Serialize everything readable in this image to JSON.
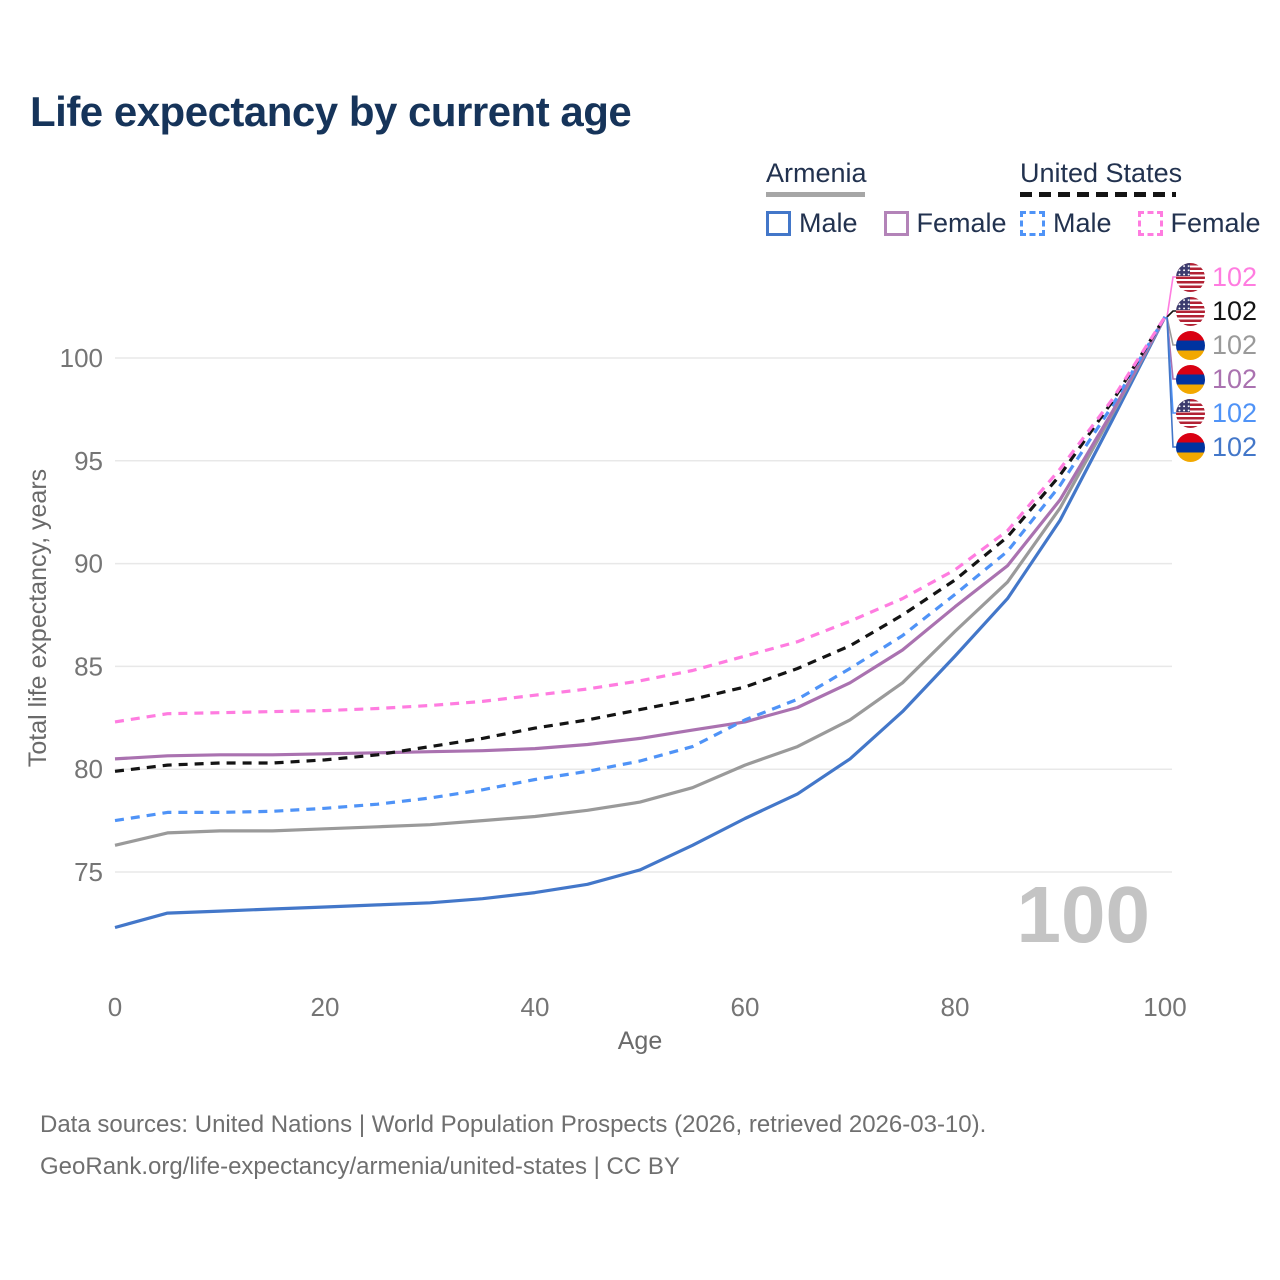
{
  "title": "Life expectancy by current age",
  "legend": {
    "groups": [
      {
        "id": "armenia",
        "label": "Armenia",
        "line_style": "solid",
        "line_color": "#a6a6a6",
        "items": [
          {
            "label": "Male",
            "color": "#4377c9",
            "dashed": false
          },
          {
            "label": "Female",
            "color": "#b383b8",
            "dashed": false
          }
        ]
      },
      {
        "id": "united-states",
        "label": "United States",
        "line_style": "dashed",
        "line_color": "#141414",
        "items": [
          {
            "label": "Male",
            "color": "#4f93f7",
            "dashed": true
          },
          {
            "label": "Female",
            "color": "#ff7ce0",
            "dashed": true
          }
        ]
      }
    ]
  },
  "chart_data": {
    "type": "line",
    "title": "Life expectancy by current age",
    "xlabel": "Age",
    "ylabel": "Total life expectancy, years",
    "x": [
      0,
      5,
      10,
      15,
      20,
      25,
      30,
      35,
      40,
      45,
      50,
      55,
      60,
      65,
      70,
      75,
      80,
      85,
      90,
      95,
      100
    ],
    "xticks": [
      0,
      20,
      40,
      60,
      80,
      100
    ],
    "yticks": [
      75,
      80,
      85,
      90,
      95,
      100
    ],
    "xlim": [
      0,
      100
    ],
    "ylim": [
      72,
      103
    ],
    "grid": "horizontal-only",
    "legend_position": "top-right",
    "series": [
      {
        "name": "Armenia Male",
        "style": "solid",
        "color": "#4377c9",
        "values": [
          72.3,
          73.0,
          73.1,
          73.2,
          73.3,
          73.4,
          73.5,
          73.7,
          74.0,
          74.4,
          75.1,
          76.3,
          77.6,
          78.8,
          80.5,
          82.8,
          85.5,
          88.3,
          92.1,
          97.0,
          102
        ]
      },
      {
        "name": "Armenia All",
        "style": "solid",
        "color": "#9a9a9a",
        "values": [
          76.3,
          76.9,
          77.0,
          77.0,
          77.1,
          77.2,
          77.3,
          77.5,
          77.7,
          78.0,
          78.4,
          79.1,
          80.2,
          81.1,
          82.4,
          84.2,
          86.7,
          89.1,
          92.7,
          97.3,
          102
        ]
      },
      {
        "name": "Armenia Female",
        "style": "solid",
        "color": "#aa72b0",
        "values": [
          80.5,
          80.65,
          80.7,
          80.7,
          80.75,
          80.8,
          80.85,
          80.9,
          81.0,
          81.2,
          81.5,
          81.9,
          82.3,
          83.0,
          84.2,
          85.8,
          87.9,
          89.9,
          93.1,
          97.4,
          102
        ]
      },
      {
        "name": "United States Male",
        "style": "dashed",
        "color": "#4f93f7",
        "values": [
          77.5,
          77.9,
          77.9,
          77.95,
          78.1,
          78.3,
          78.6,
          79.0,
          79.5,
          79.9,
          80.4,
          81.1,
          82.4,
          83.4,
          84.9,
          86.5,
          88.5,
          90.6,
          93.8,
          97.7,
          102
        ]
      },
      {
        "name": "United States All",
        "style": "dashed",
        "color": "#141414",
        "values": [
          79.9,
          80.2,
          80.3,
          80.3,
          80.45,
          80.7,
          81.1,
          81.5,
          82.0,
          82.4,
          82.9,
          83.4,
          84.0,
          84.9,
          86.0,
          87.5,
          89.2,
          91.3,
          94.3,
          97.9,
          102
        ]
      },
      {
        "name": "United States Female",
        "style": "dashed",
        "color": "#ff7ce0",
        "values": [
          82.3,
          82.7,
          82.75,
          82.8,
          82.85,
          82.95,
          83.1,
          83.3,
          83.6,
          83.9,
          84.3,
          84.8,
          85.5,
          86.2,
          87.2,
          88.3,
          89.7,
          91.6,
          94.6,
          98.0,
          102
        ]
      }
    ]
  },
  "end_labels": [
    {
      "series": "United States Female",
      "flag": "us",
      "value": "102",
      "color": "#ff7ce0"
    },
    {
      "series": "United States All",
      "flag": "us",
      "value": "102",
      "color": "#141414"
    },
    {
      "series": "Armenia All",
      "flag": "am",
      "value": "102",
      "color": "#9a9a9a"
    },
    {
      "series": "Armenia Female",
      "flag": "am",
      "value": "102",
      "color": "#aa72b0"
    },
    {
      "series": "United States Male",
      "flag": "us",
      "value": "102",
      "color": "#4f93f7"
    },
    {
      "series": "Armenia Male",
      "flag": "am",
      "value": "102",
      "color": "#4377c9"
    }
  ],
  "watermark": "100",
  "footer": {
    "line1": "Data sources: United Nations | World Population Prospects (2026, retrieved 2026-03-10).",
    "line2": "GeoRank.org/life-expectancy/armenia/united-states | CC BY"
  }
}
